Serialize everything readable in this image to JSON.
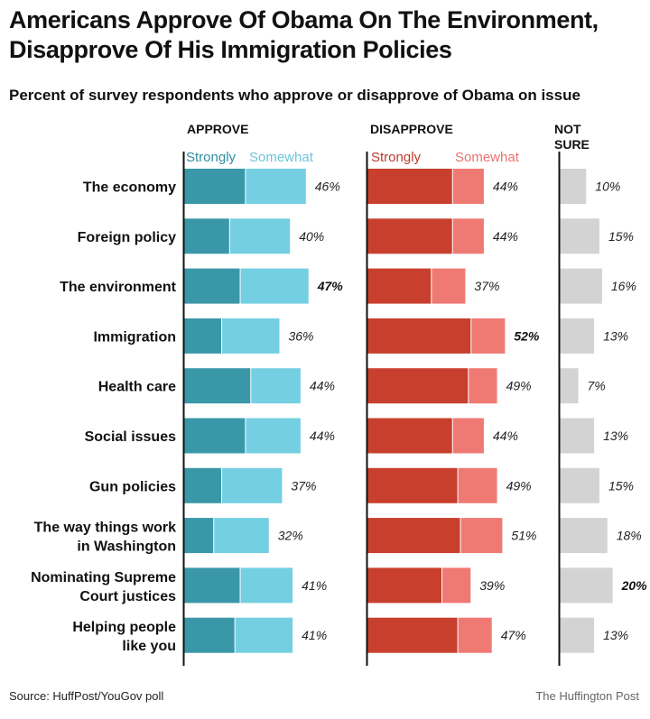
{
  "title": "Americans Approve Of Obama On The Environment, Disapprove Of His Immigration Policies",
  "subtitle": "Percent of survey respondents who approve or disapprove of Obama on issue",
  "source": "Source: HuffPost/YouGov poll",
  "credit": "The Huffington Post",
  "colors": {
    "approve_strong": "#3a97a8",
    "approve_somewhat": "#74cfe2",
    "disapprove_strong": "#c8402d",
    "disapprove_somewhat": "#ef7a74",
    "not_sure": "#d3d3d3",
    "approve_strong_label": "#2f8ea0",
    "approve_somewhat_label": "#6cc6d8",
    "disapprove_strong_label": "#c0392b",
    "disapprove_somewhat_label": "#e8746e"
  },
  "chart_data": {
    "type": "bar",
    "orientation": "horizontal",
    "stacked": true,
    "groups": [
      {
        "name": "APPROVE",
        "subseries": [
          "Strongly",
          "Somewhat"
        ]
      },
      {
        "name": "DISAPPROVE",
        "subseries": [
          "Strongly",
          "Somewhat"
        ]
      },
      {
        "name": "NOT SURE",
        "subseries": []
      }
    ],
    "categories": [
      "The economy",
      "Foreign policy",
      "The environment",
      "Immigration",
      "Health care",
      "Social issues",
      "Gun policies",
      "The way things work in Washington",
      "Nominating Supreme Court justices",
      "Helping people like you"
    ],
    "category_lines": [
      [
        "The economy"
      ],
      [
        "Foreign policy"
      ],
      [
        "The environment"
      ],
      [
        "Immigration"
      ],
      [
        "Health care"
      ],
      [
        "Social issues"
      ],
      [
        "Gun policies"
      ],
      [
        "The way things work",
        "in Washington"
      ],
      [
        "Nominating Supreme",
        "Court justices"
      ],
      [
        "Helping people",
        "like you"
      ]
    ],
    "approve_strongly": [
      23,
      17,
      21,
      14,
      25,
      23,
      14,
      11,
      21,
      19
    ],
    "approve_somewhat": [
      23,
      23,
      26,
      22,
      19,
      21,
      23,
      21,
      20,
      22
    ],
    "approve_total": [
      46,
      40,
      47,
      36,
      44,
      44,
      37,
      32,
      41,
      41
    ],
    "approve_labels": [
      "46%",
      "40%",
      "47%",
      "36%",
      "44%",
      "44%",
      "37%",
      "32%",
      "41%",
      "41%"
    ],
    "disapprove_strongly": [
      32,
      32,
      24,
      39,
      38,
      32,
      34,
      35,
      28,
      34
    ],
    "disapprove_somewhat": [
      12,
      12,
      13,
      13,
      11,
      12,
      15,
      16,
      11,
      13
    ],
    "disapprove_total": [
      44,
      44,
      37,
      52,
      49,
      44,
      49,
      51,
      39,
      47
    ],
    "disapprove_labels": [
      "44%",
      "44%",
      "37%",
      "52%",
      "49%",
      "44%",
      "49%",
      "51%",
      "39%",
      "47%"
    ],
    "not_sure": [
      10,
      15,
      16,
      13,
      7,
      13,
      15,
      18,
      20,
      13
    ],
    "not_sure_labels": [
      "10%",
      "15%",
      "16%",
      "13%",
      "7%",
      "13%",
      "15%",
      "18%",
      "20%",
      "13%"
    ],
    "highlight": {
      "approve": 2,
      "disapprove": 3,
      "not_sure": 8
    }
  }
}
